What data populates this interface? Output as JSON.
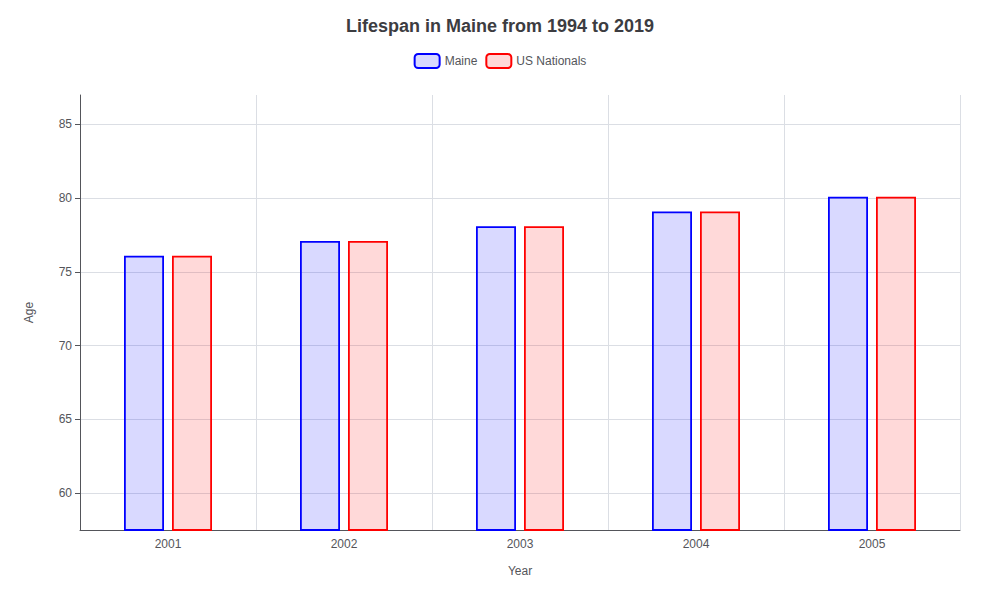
{
  "chart_data": {
    "type": "bar",
    "title": "Lifespan in Maine from 1994 to 2019",
    "xlabel": "Year",
    "ylabel": "Age",
    "categories": [
      "2001",
      "2002",
      "2003",
      "2004",
      "2005"
    ],
    "series": [
      {
        "name": "Maine",
        "color": "#0000ff",
        "values": [
          76.1,
          77.1,
          78.1,
          79.1,
          80.1
        ]
      },
      {
        "name": "US Nationals",
        "color": "#ff0000",
        "values": [
          76.1,
          77.1,
          78.1,
          79.1,
          80.1
        ]
      }
    ],
    "ylim": [
      57.5,
      87
    ],
    "yticks": [
      60,
      65,
      70,
      75,
      80,
      85
    ],
    "grid": true,
    "legend": "top"
  }
}
